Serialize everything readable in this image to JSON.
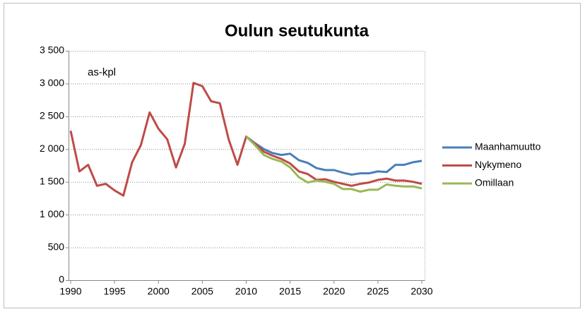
{
  "chart_data": {
    "type": "line",
    "title": "Oulun seutukunta",
    "annotation": "as-kpl",
    "x": [
      1990,
      1991,
      1992,
      1993,
      1994,
      1995,
      1996,
      1997,
      1998,
      1999,
      2000,
      2001,
      2002,
      2003,
      2004,
      2005,
      2006,
      2007,
      2008,
      2009,
      2010,
      2011,
      2012,
      2013,
      2014,
      2015,
      2016,
      2017,
      2018,
      2019,
      2020,
      2021,
      2022,
      2023,
      2024,
      2025,
      2026,
      2027,
      2028,
      2029,
      2030
    ],
    "series": [
      {
        "name": "Maanhamuutto",
        "color": "#4a7ebb",
        "values": [
          null,
          null,
          null,
          null,
          null,
          null,
          null,
          null,
          null,
          null,
          null,
          null,
          null,
          null,
          null,
          null,
          null,
          null,
          null,
          null,
          2190,
          2090,
          2000,
          1940,
          1910,
          1930,
          1830,
          1790,
          1710,
          1680,
          1680,
          1640,
          1610,
          1630,
          1630,
          1660,
          1650,
          1760,
          1760,
          1800,
          1820
        ]
      },
      {
        "name": "Nykymeno",
        "color": "#be4b48",
        "values": [
          2280,
          1660,
          1760,
          1440,
          1470,
          1370,
          1290,
          1800,
          2060,
          2560,
          2310,
          2150,
          1720,
          2080,
          3010,
          2960,
          2730,
          2700,
          2150,
          1760,
          2190,
          2080,
          1960,
          1900,
          1850,
          1780,
          1660,
          1620,
          1530,
          1540,
          1500,
          1470,
          1440,
          1470,
          1490,
          1530,
          1550,
          1520,
          1520,
          1500,
          1470
        ]
      },
      {
        "name": "Omillaan",
        "color": "#98b954",
        "values": [
          null,
          null,
          null,
          null,
          null,
          null,
          null,
          null,
          null,
          null,
          null,
          null,
          null,
          null,
          null,
          null,
          null,
          null,
          null,
          null,
          2190,
          2060,
          1910,
          1850,
          1810,
          1720,
          1570,
          1490,
          1520,
          1500,
          1470,
          1390,
          1390,
          1350,
          1380,
          1380,
          1460,
          1440,
          1430,
          1430,
          1400
        ]
      }
    ],
    "xlim": [
      1990,
      2030
    ],
    "xticks": [
      1990,
      1995,
      2000,
      2005,
      2010,
      2015,
      2020,
      2025,
      2030
    ],
    "ylim": [
      0,
      3500
    ],
    "yticks": [
      0,
      500,
      {
        "value": 1000,
        "label": "1 000"
      },
      {
        "value": 1500,
        "label": "1 500"
      },
      {
        "value": 2000,
        "label": "2 000"
      },
      {
        "value": 2500,
        "label": "2 500"
      },
      {
        "value": 3000,
        "label": "3 000"
      },
      {
        "value": 3500,
        "label": "3 500"
      }
    ],
    "grid": true,
    "legend": "right"
  }
}
